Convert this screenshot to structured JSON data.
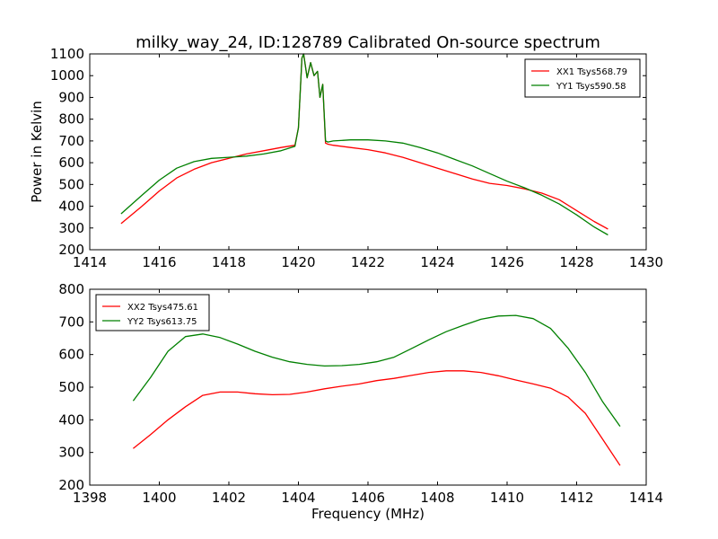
{
  "figure": {
    "title": "milky_way_24, ID:128789 Calibrated On-source spectrum"
  },
  "chart_data": [
    {
      "type": "line",
      "title": "milky_way_24, ID:128789 Calibrated On-source spectrum",
      "xlabel": "",
      "ylabel": "Power in Kelvin",
      "xlim": [
        1414,
        1430
      ],
      "ylim": [
        200,
        1100
      ],
      "xticks": [
        1414,
        1416,
        1418,
        1420,
        1422,
        1424,
        1426,
        1428,
        1430
      ],
      "yticks": [
        200,
        300,
        400,
        500,
        600,
        700,
        800,
        900,
        1000,
        1100
      ],
      "grid": false,
      "legend_position": "top-right",
      "series": [
        {
          "name": "XX1 Tsys568.79",
          "color": "#ff0000",
          "x": [
            1414.9,
            1415.5,
            1416.0,
            1416.5,
            1417.0,
            1417.5,
            1418.0,
            1418.5,
            1419.0,
            1419.5,
            1419.9,
            1420.0,
            1420.1,
            1420.15,
            1420.25,
            1420.35,
            1420.45,
            1420.55,
            1420.62,
            1420.7,
            1420.78,
            1420.85,
            1421.0,
            1421.5,
            1422.0,
            1422.5,
            1423.0,
            1423.5,
            1424.0,
            1424.5,
            1425.0,
            1425.5,
            1426.0,
            1426.5,
            1427.0,
            1427.5,
            1428.0,
            1428.5,
            1428.9
          ],
          "values": [
            320,
            400,
            470,
            530,
            570,
            600,
            620,
            640,
            655,
            670,
            680,
            760,
            1080,
            1100,
            990,
            1060,
            1000,
            1020,
            900,
            960,
            690,
            685,
            680,
            670,
            660,
            645,
            625,
            600,
            575,
            550,
            525,
            505,
            495,
            480,
            460,
            430,
            380,
            330,
            295
          ]
        },
        {
          "name": "YY1 Tsys590.58",
          "color": "#008000",
          "x": [
            1414.9,
            1415.5,
            1416.0,
            1416.5,
            1417.0,
            1417.5,
            1418.0,
            1418.5,
            1419.0,
            1419.5,
            1419.9,
            1420.0,
            1420.1,
            1420.15,
            1420.25,
            1420.35,
            1420.45,
            1420.55,
            1420.62,
            1420.7,
            1420.78,
            1420.85,
            1421.0,
            1421.5,
            1422.0,
            1422.5,
            1423.0,
            1423.5,
            1424.0,
            1424.5,
            1425.0,
            1425.5,
            1426.0,
            1426.5,
            1427.0,
            1427.5,
            1428.0,
            1428.5,
            1428.9
          ],
          "values": [
            365,
            450,
            520,
            575,
            605,
            620,
            625,
            630,
            640,
            655,
            675,
            760,
            1080,
            1100,
            990,
            1060,
            1000,
            1020,
            900,
            960,
            700,
            695,
            700,
            705,
            705,
            700,
            690,
            670,
            645,
            615,
            585,
            550,
            515,
            485,
            450,
            410,
            360,
            305,
            268
          ]
        }
      ]
    },
    {
      "type": "line",
      "title": "",
      "xlabel": "Frequency (MHz)",
      "ylabel": "",
      "xlim": [
        1398,
        1414
      ],
      "ylim": [
        200,
        800
      ],
      "xticks": [
        1398,
        1400,
        1402,
        1404,
        1406,
        1408,
        1410,
        1412,
        1414
      ],
      "yticks": [
        200,
        300,
        400,
        500,
        600,
        700,
        800
      ],
      "grid": false,
      "legend_position": "top-left",
      "series": [
        {
          "name": "XX2 Tsys475.61",
          "color": "#ff0000",
          "x": [
            1399.25,
            1399.75,
            1400.25,
            1400.75,
            1401.25,
            1401.75,
            1402.25,
            1402.75,
            1403.25,
            1403.75,
            1404.25,
            1404.75,
            1405.25,
            1405.75,
            1406.25,
            1406.75,
            1407.25,
            1407.75,
            1408.25,
            1408.75,
            1409.25,
            1409.75,
            1410.25,
            1410.75,
            1411.25,
            1411.75,
            1412.25,
            1412.75,
            1413.25
          ],
          "values": [
            312,
            355,
            400,
            440,
            475,
            485,
            485,
            480,
            477,
            478,
            485,
            495,
            503,
            510,
            520,
            527,
            536,
            545,
            550,
            550,
            545,
            535,
            522,
            510,
            497,
            470,
            420,
            340,
            260
          ]
        },
        {
          "name": "YY2 Tsys613.75",
          "color": "#008000",
          "x": [
            1399.25,
            1399.75,
            1400.25,
            1400.75,
            1401.25,
            1401.75,
            1402.25,
            1402.75,
            1403.25,
            1403.75,
            1404.25,
            1404.75,
            1405.25,
            1405.75,
            1406.25,
            1406.75,
            1407.25,
            1407.75,
            1408.25,
            1408.75,
            1409.25,
            1409.75,
            1410.25,
            1410.75,
            1411.25,
            1411.75,
            1412.25,
            1412.75,
            1413.25
          ],
          "values": [
            458,
            530,
            610,
            655,
            663,
            652,
            632,
            610,
            592,
            578,
            570,
            565,
            566,
            570,
            578,
            592,
            618,
            645,
            670,
            690,
            708,
            718,
            720,
            710,
            680,
            620,
            545,
            455,
            380
          ]
        }
      ]
    }
  ]
}
